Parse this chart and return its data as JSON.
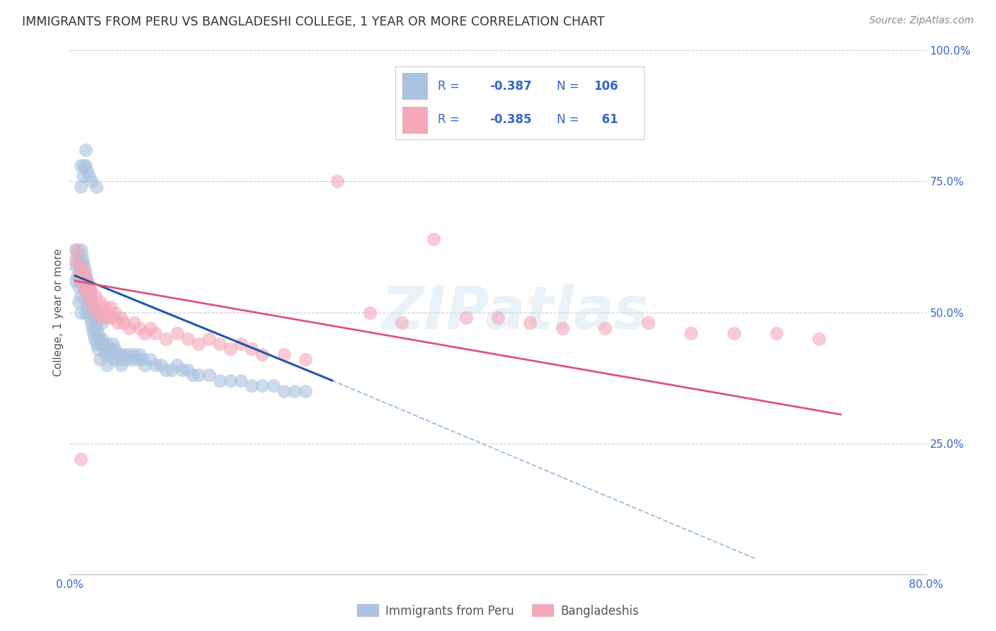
{
  "title": "IMMIGRANTS FROM PERU VS BANGLADESHI COLLEGE, 1 YEAR OR MORE CORRELATION CHART",
  "source": "Source: ZipAtlas.com",
  "ylabel_left": "College, 1 year or more",
  "xmin": 0.0,
  "xmax": 0.8,
  "ymin": 0.0,
  "ymax": 1.0,
  "legend_label1": "Immigrants from Peru",
  "legend_label2": "Bangladeshis",
  "color_blue": "#aac4e0",
  "color_pink": "#f4a8b8",
  "color_line_blue": "#2255aa",
  "color_line_pink": "#dd5577",
  "color_dashed": "#99bbdd",
  "color_blue_text": "#3366cc",
  "color_title": "#333333",
  "watermark": "ZIPatlas",
  "blue_scatter_x": [
    0.005,
    0.005,
    0.005,
    0.007,
    0.007,
    0.008,
    0.008,
    0.008,
    0.009,
    0.009,
    0.01,
    0.01,
    0.01,
    0.01,
    0.01,
    0.011,
    0.011,
    0.012,
    0.012,
    0.013,
    0.013,
    0.014,
    0.014,
    0.015,
    0.015,
    0.015,
    0.016,
    0.016,
    0.017,
    0.017,
    0.018,
    0.018,
    0.019,
    0.019,
    0.02,
    0.02,
    0.021,
    0.021,
    0.022,
    0.022,
    0.023,
    0.023,
    0.024,
    0.025,
    0.025,
    0.026,
    0.026,
    0.027,
    0.028,
    0.028,
    0.03,
    0.03,
    0.031,
    0.032,
    0.033,
    0.034,
    0.035,
    0.035,
    0.036,
    0.038,
    0.04,
    0.041,
    0.042,
    0.044,
    0.045,
    0.047,
    0.048,
    0.05,
    0.052,
    0.055,
    0.058,
    0.06,
    0.063,
    0.065,
    0.068,
    0.07,
    0.075,
    0.08,
    0.085,
    0.09,
    0.095,
    0.1,
    0.105,
    0.11,
    0.115,
    0.12,
    0.13,
    0.14,
    0.15,
    0.16,
    0.17,
    0.18,
    0.19,
    0.2,
    0.21,
    0.22,
    0.01,
    0.01,
    0.012,
    0.013,
    0.015,
    0.015,
    0.016,
    0.018,
    0.02,
    0.025
  ],
  "blue_scatter_y": [
    0.62,
    0.59,
    0.56,
    0.61,
    0.57,
    0.59,
    0.55,
    0.52,
    0.6,
    0.56,
    0.62,
    0.59,
    0.56,
    0.53,
    0.5,
    0.61,
    0.57,
    0.6,
    0.56,
    0.59,
    0.55,
    0.58,
    0.54,
    0.57,
    0.53,
    0.5,
    0.56,
    0.52,
    0.55,
    0.51,
    0.54,
    0.5,
    0.53,
    0.49,
    0.52,
    0.48,
    0.51,
    0.47,
    0.5,
    0.46,
    0.49,
    0.45,
    0.48,
    0.47,
    0.44,
    0.46,
    0.43,
    0.45,
    0.44,
    0.41,
    0.48,
    0.45,
    0.44,
    0.43,
    0.42,
    0.44,
    0.43,
    0.4,
    0.42,
    0.43,
    0.44,
    0.41,
    0.43,
    0.42,
    0.41,
    0.42,
    0.4,
    0.42,
    0.41,
    0.42,
    0.41,
    0.42,
    0.41,
    0.42,
    0.41,
    0.4,
    0.41,
    0.4,
    0.4,
    0.39,
    0.39,
    0.4,
    0.39,
    0.39,
    0.38,
    0.38,
    0.38,
    0.37,
    0.37,
    0.37,
    0.36,
    0.36,
    0.36,
    0.35,
    0.35,
    0.35,
    0.78,
    0.74,
    0.76,
    0.78,
    0.81,
    0.78,
    0.77,
    0.76,
    0.75,
    0.74
  ],
  "pink_scatter_x": [
    0.005,
    0.007,
    0.009,
    0.01,
    0.011,
    0.012,
    0.013,
    0.014,
    0.015,
    0.016,
    0.017,
    0.018,
    0.019,
    0.02,
    0.022,
    0.024,
    0.026,
    0.028,
    0.03,
    0.032,
    0.034,
    0.036,
    0.038,
    0.04,
    0.042,
    0.045,
    0.048,
    0.05,
    0.055,
    0.06,
    0.065,
    0.07,
    0.075,
    0.08,
    0.09,
    0.1,
    0.11,
    0.12,
    0.13,
    0.14,
    0.15,
    0.16,
    0.17,
    0.18,
    0.2,
    0.22,
    0.25,
    0.28,
    0.31,
    0.34,
    0.37,
    0.4,
    0.43,
    0.46,
    0.5,
    0.54,
    0.58,
    0.62,
    0.66,
    0.7,
    0.01
  ],
  "pink_scatter_y": [
    0.6,
    0.62,
    0.57,
    0.59,
    0.56,
    0.58,
    0.55,
    0.57,
    0.54,
    0.56,
    0.53,
    0.55,
    0.52,
    0.54,
    0.51,
    0.53,
    0.5,
    0.52,
    0.49,
    0.51,
    0.5,
    0.49,
    0.51,
    0.49,
    0.5,
    0.48,
    0.49,
    0.48,
    0.47,
    0.48,
    0.47,
    0.46,
    0.47,
    0.46,
    0.45,
    0.46,
    0.45,
    0.44,
    0.45,
    0.44,
    0.43,
    0.44,
    0.43,
    0.42,
    0.42,
    0.41,
    0.75,
    0.5,
    0.48,
    0.64,
    0.49,
    0.49,
    0.48,
    0.47,
    0.47,
    0.48,
    0.46,
    0.46,
    0.46,
    0.45,
    0.22
  ],
  "blue_line_x": [
    0.005,
    0.245
  ],
  "blue_line_y": [
    0.57,
    0.37
  ],
  "pink_line_x": [
    0.005,
    0.72
  ],
  "pink_line_y": [
    0.56,
    0.305
  ],
  "dashed_line_x": [
    0.245,
    0.64
  ],
  "dashed_line_y": [
    0.37,
    0.03
  ],
  "right_yticks": [
    0.0,
    0.25,
    0.5,
    0.75,
    1.0
  ],
  "right_ylabels": [
    "",
    "25.0%",
    "50.0%",
    "75.0%",
    "100.0%"
  ]
}
